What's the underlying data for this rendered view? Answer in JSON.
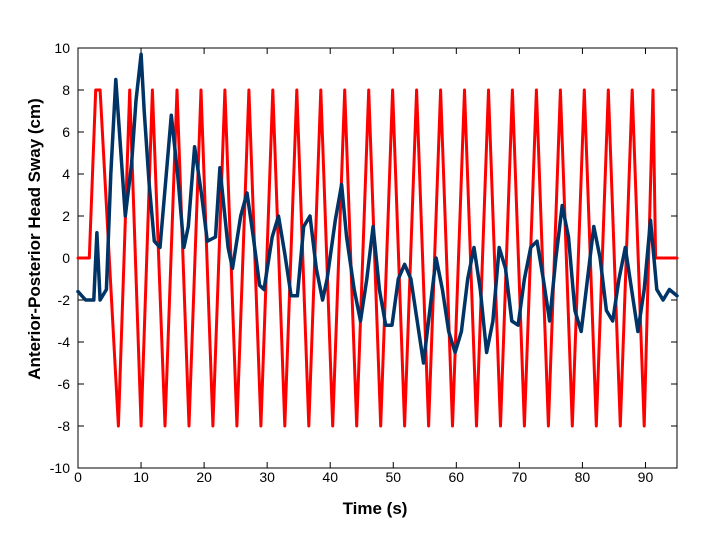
{
  "chart_data": {
    "type": "line",
    "title": "",
    "xlabel": "Time (s)",
    "ylabel": "Anterior-Posterior Head Sway (cm)",
    "xlim": [
      0,
      95
    ],
    "ylim": [
      -10,
      10
    ],
    "xticks": [
      "0",
      "10",
      "20",
      "30",
      "40",
      "50",
      "60",
      "70",
      "80",
      "90"
    ],
    "yticks": [
      "10",
      "8",
      "6",
      "4",
      "2",
      "0",
      "-2",
      "-4",
      "-6",
      "-8",
      "-10"
    ],
    "grid": false,
    "legend": "none",
    "series": [
      {
        "color": "#ff0000",
        "x": [
          0,
          1.5,
          1.8,
          2.8,
          3.5,
          6.4,
          8.2,
          10.0,
          11.8,
          13.8,
          15.7,
          17.6,
          19.5,
          21.4,
          23.3,
          25.2,
          27.1,
          29.0,
          30.9,
          32.8,
          34.7,
          36.6,
          38.5,
          40.4,
          42.3,
          44.2,
          46.1,
          48.0,
          49.9,
          51.8,
          53.7,
          55.6,
          57.5,
          59.4,
          61.3,
          63.2,
          65.1,
          67.0,
          68.9,
          70.8,
          72.7,
          74.6,
          76.5,
          78.4,
          80.3,
          82.2,
          84.1,
          86.0,
          87.9,
          89.8,
          91.2,
          91.6,
          95.0
        ],
        "y": [
          0,
          0,
          0,
          8,
          8,
          -8,
          8,
          -8,
          8,
          -8,
          8,
          -8,
          8,
          -8,
          8,
          -8,
          8,
          -8,
          8,
          -8,
          8,
          -8,
          8,
          -8,
          8,
          -8,
          8,
          -8,
          8,
          -8,
          8,
          -8,
          8,
          -8,
          8,
          -8,
          8,
          -8,
          8,
          -8,
          8,
          -8,
          8,
          -8,
          8,
          -8,
          8,
          -8,
          8,
          -8,
          8,
          0,
          0
        ]
      },
      {
        "color": "#003366",
        "x": [
          0,
          1.2,
          2.5,
          3.0,
          3.5,
          4.5,
          5.2,
          6.0,
          6.8,
          7.5,
          8.5,
          9.2,
          10.0,
          10.5,
          11.3,
          12.1,
          13.0,
          14.0,
          14.8,
          15.8,
          16.8,
          17.5,
          18.5,
          19.6,
          20.5,
          21.8,
          22.5,
          23.8,
          24.5,
          25.8,
          26.8,
          27.8,
          28.8,
          29.5,
          30.8,
          31.8,
          32.8,
          33.8,
          34.8,
          35.8,
          36.8,
          37.8,
          38.8,
          39.5,
          40.8,
          41.8,
          42.6,
          43.8,
          44.8,
          45.8,
          46.8,
          47.8,
          48.8,
          49.8,
          50.8,
          51.8,
          52.8,
          53.8,
          54.8,
          55.8,
          56.8,
          57.8,
          58.8,
          59.8,
          60.8,
          61.8,
          62.8,
          63.8,
          64.8,
          65.8,
          66.8,
          67.8,
          68.8,
          69.8,
          70.8,
          71.8,
          72.8,
          73.8,
          74.8,
          75.8,
          76.8,
          77.8,
          78.8,
          79.8,
          80.8,
          81.8,
          82.8,
          83.8,
          84.8,
          85.8,
          86.8,
          87.8,
          88.8,
          89.8,
          90.8,
          91.8,
          92.8,
          93.8,
          95.0
        ],
        "y": [
          -1.6,
          -2.0,
          -2.0,
          1.2,
          -2.0,
          -1.5,
          4.0,
          8.5,
          5.0,
          2.0,
          4.5,
          7.5,
          9.7,
          7.0,
          3.5,
          0.8,
          0.5,
          4.0,
          6.8,
          4.0,
          0.5,
          1.5,
          5.3,
          3.0,
          0.8,
          1.0,
          4.3,
          0.5,
          -0.5,
          2.0,
          3.1,
          1.0,
          -1.3,
          -1.5,
          1.0,
          2.0,
          0.2,
          -1.8,
          -1.8,
          1.5,
          2.0,
          -0.5,
          -2.0,
          -1.0,
          1.8,
          3.5,
          1.0,
          -1.5,
          -3.0,
          -1.0,
          1.5,
          -1.5,
          -3.2,
          -3.2,
          -1.0,
          -0.3,
          -1.0,
          -3.0,
          -5.0,
          -2.5,
          0.0,
          -1.5,
          -3.5,
          -4.5,
          -3.5,
          -1.0,
          0.5,
          -1.5,
          -4.5,
          -3.0,
          0.5,
          -0.5,
          -3.0,
          -3.2,
          -1.0,
          0.5,
          0.8,
          -1.0,
          -3.0,
          0.0,
          2.5,
          1.0,
          -2.5,
          -3.5,
          -1.0,
          1.5,
          0.0,
          -2.5,
          -3.0,
          -1.0,
          0.5,
          -1.5,
          -3.5,
          -1.5,
          1.8,
          -1.5,
          -2.0,
          -1.5,
          -1.8
        ]
      }
    ]
  }
}
